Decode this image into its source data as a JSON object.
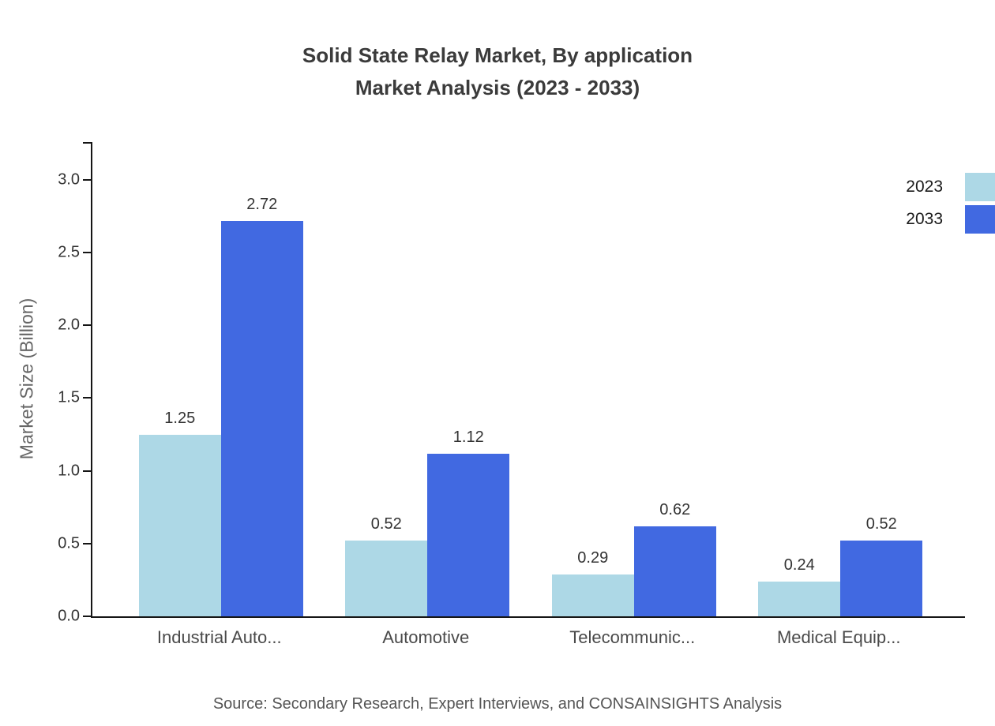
{
  "title": {
    "line1": "Solid State Relay Market, By application",
    "line2": "Market Analysis (2023 - 2033)"
  },
  "source": "Source: Secondary Research, Expert Interviews, and CONSAINSIGHTS Analysis",
  "chart_data": {
    "type": "bar",
    "title": "Solid State Relay Market, By application Market Analysis (2023 - 2033)",
    "categories": [
      "Industrial Auto...",
      "Automotive",
      "Telecommunic...",
      "Medical Equip..."
    ],
    "series": [
      {
        "name": "2023",
        "color": "#ADD8E6",
        "values": [
          1.25,
          0.52,
          0.29,
          0.24
        ]
      },
      {
        "name": "2033",
        "color": "#4169E1",
        "values": [
          2.72,
          1.12,
          0.62,
          0.52
        ]
      }
    ],
    "xlabel": "",
    "ylabel": "Market Size (Billion)",
    "ylim": [
      0,
      3.26
    ],
    "yticks": [
      0,
      0.5,
      1,
      1.5,
      2,
      2.5,
      3
    ],
    "grid": false,
    "legend_position": "top-right"
  }
}
